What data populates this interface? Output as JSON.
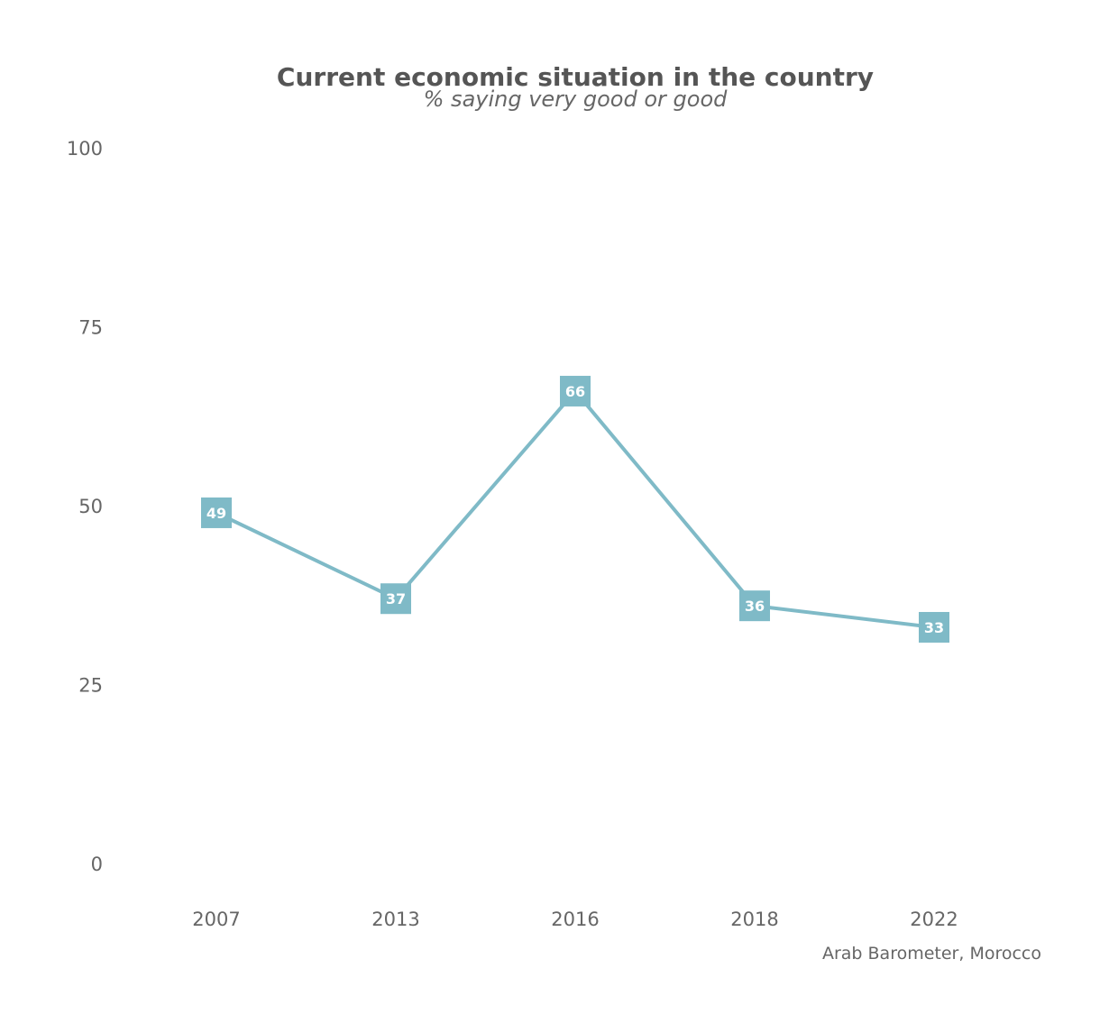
{
  "chart_data": {
    "type": "line",
    "title": "Current economic situation in the country",
    "subtitle": "% saying very good or good",
    "caption": "Arab Barometer, Morocco",
    "categories": [
      "2007",
      "2013",
      "2016",
      "2018",
      "2022"
    ],
    "series": [
      {
        "values": [
          49,
          37,
          66,
          36,
          33
        ],
        "color": "#7fbac7"
      }
    ],
    "ylim": [
      0,
      100
    ],
    "yticks": [
      "0",
      "25",
      "50",
      "75",
      "100"
    ],
    "grid": false,
    "legend": "none"
  }
}
